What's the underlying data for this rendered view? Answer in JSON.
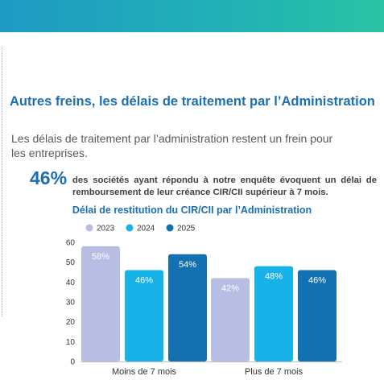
{
  "title": "Autres freins, les délais de traitement par l’Administration",
  "intro": "Les délais de traitement par l’administration restent un frein pour les entreprises.",
  "stat": {
    "value": "46%",
    "text": "des sociétés ayant répondu à notre enquête évoquent un délai de remboursement de leur créance CIR/CII supérieur à 7 mois."
  },
  "chart_data": {
    "type": "bar",
    "title": "Délai de restitution du CIR/CII par l’Administration",
    "categories": [
      "Moins de 7 mois",
      "Plus de 7 mois"
    ],
    "series": [
      {
        "name": "2023",
        "color": "#b7bde3",
        "values": [
          58,
          42
        ],
        "labels": [
          "58%",
          "42%"
        ]
      },
      {
        "name": "2024",
        "color": "#16b2e8",
        "values": [
          46,
          48
        ],
        "labels": [
          "46%",
          "48%"
        ]
      },
      {
        "name": "2025",
        "color": "#1370b1",
        "values": [
          54,
          46
        ],
        "labels": [
          "54%",
          "46%"
        ]
      }
    ],
    "ylim": [
      0,
      60
    ],
    "yticks": [
      0,
      10,
      20,
      30,
      40,
      50,
      60
    ],
    "grid": false,
    "legend": "top"
  }
}
